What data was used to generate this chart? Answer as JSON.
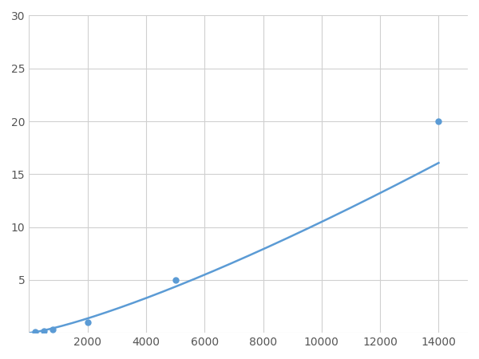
{
  "x_points": [
    200,
    500,
    800,
    2000,
    5000,
    14000
  ],
  "y_points": [
    0.12,
    0.2,
    0.3,
    1.0,
    5.0,
    20.0
  ],
  "line_color": "#5b9bd5",
  "marker_color": "#5b9bd5",
  "xlim": [
    0,
    15000
  ],
  "ylim": [
    0,
    30
  ],
  "xticks": [
    0,
    2000,
    4000,
    6000,
    8000,
    10000,
    12000,
    14000
  ],
  "yticks": [
    0,
    5,
    10,
    15,
    20,
    25,
    30
  ],
  "xtick_labels": [
    "",
    "2000",
    "4000",
    "6000",
    "8000",
    "10000",
    "12000",
    "14000"
  ],
  "ytick_labels": [
    "",
    "5",
    "10",
    "15",
    "20",
    "25",
    "30"
  ],
  "grid_color": "#d0d0d0",
  "background_color": "#ffffff",
  "marker_size": 5,
  "line_width": 1.8,
  "figsize": [
    6.0,
    4.5
  ],
  "dpi": 100
}
